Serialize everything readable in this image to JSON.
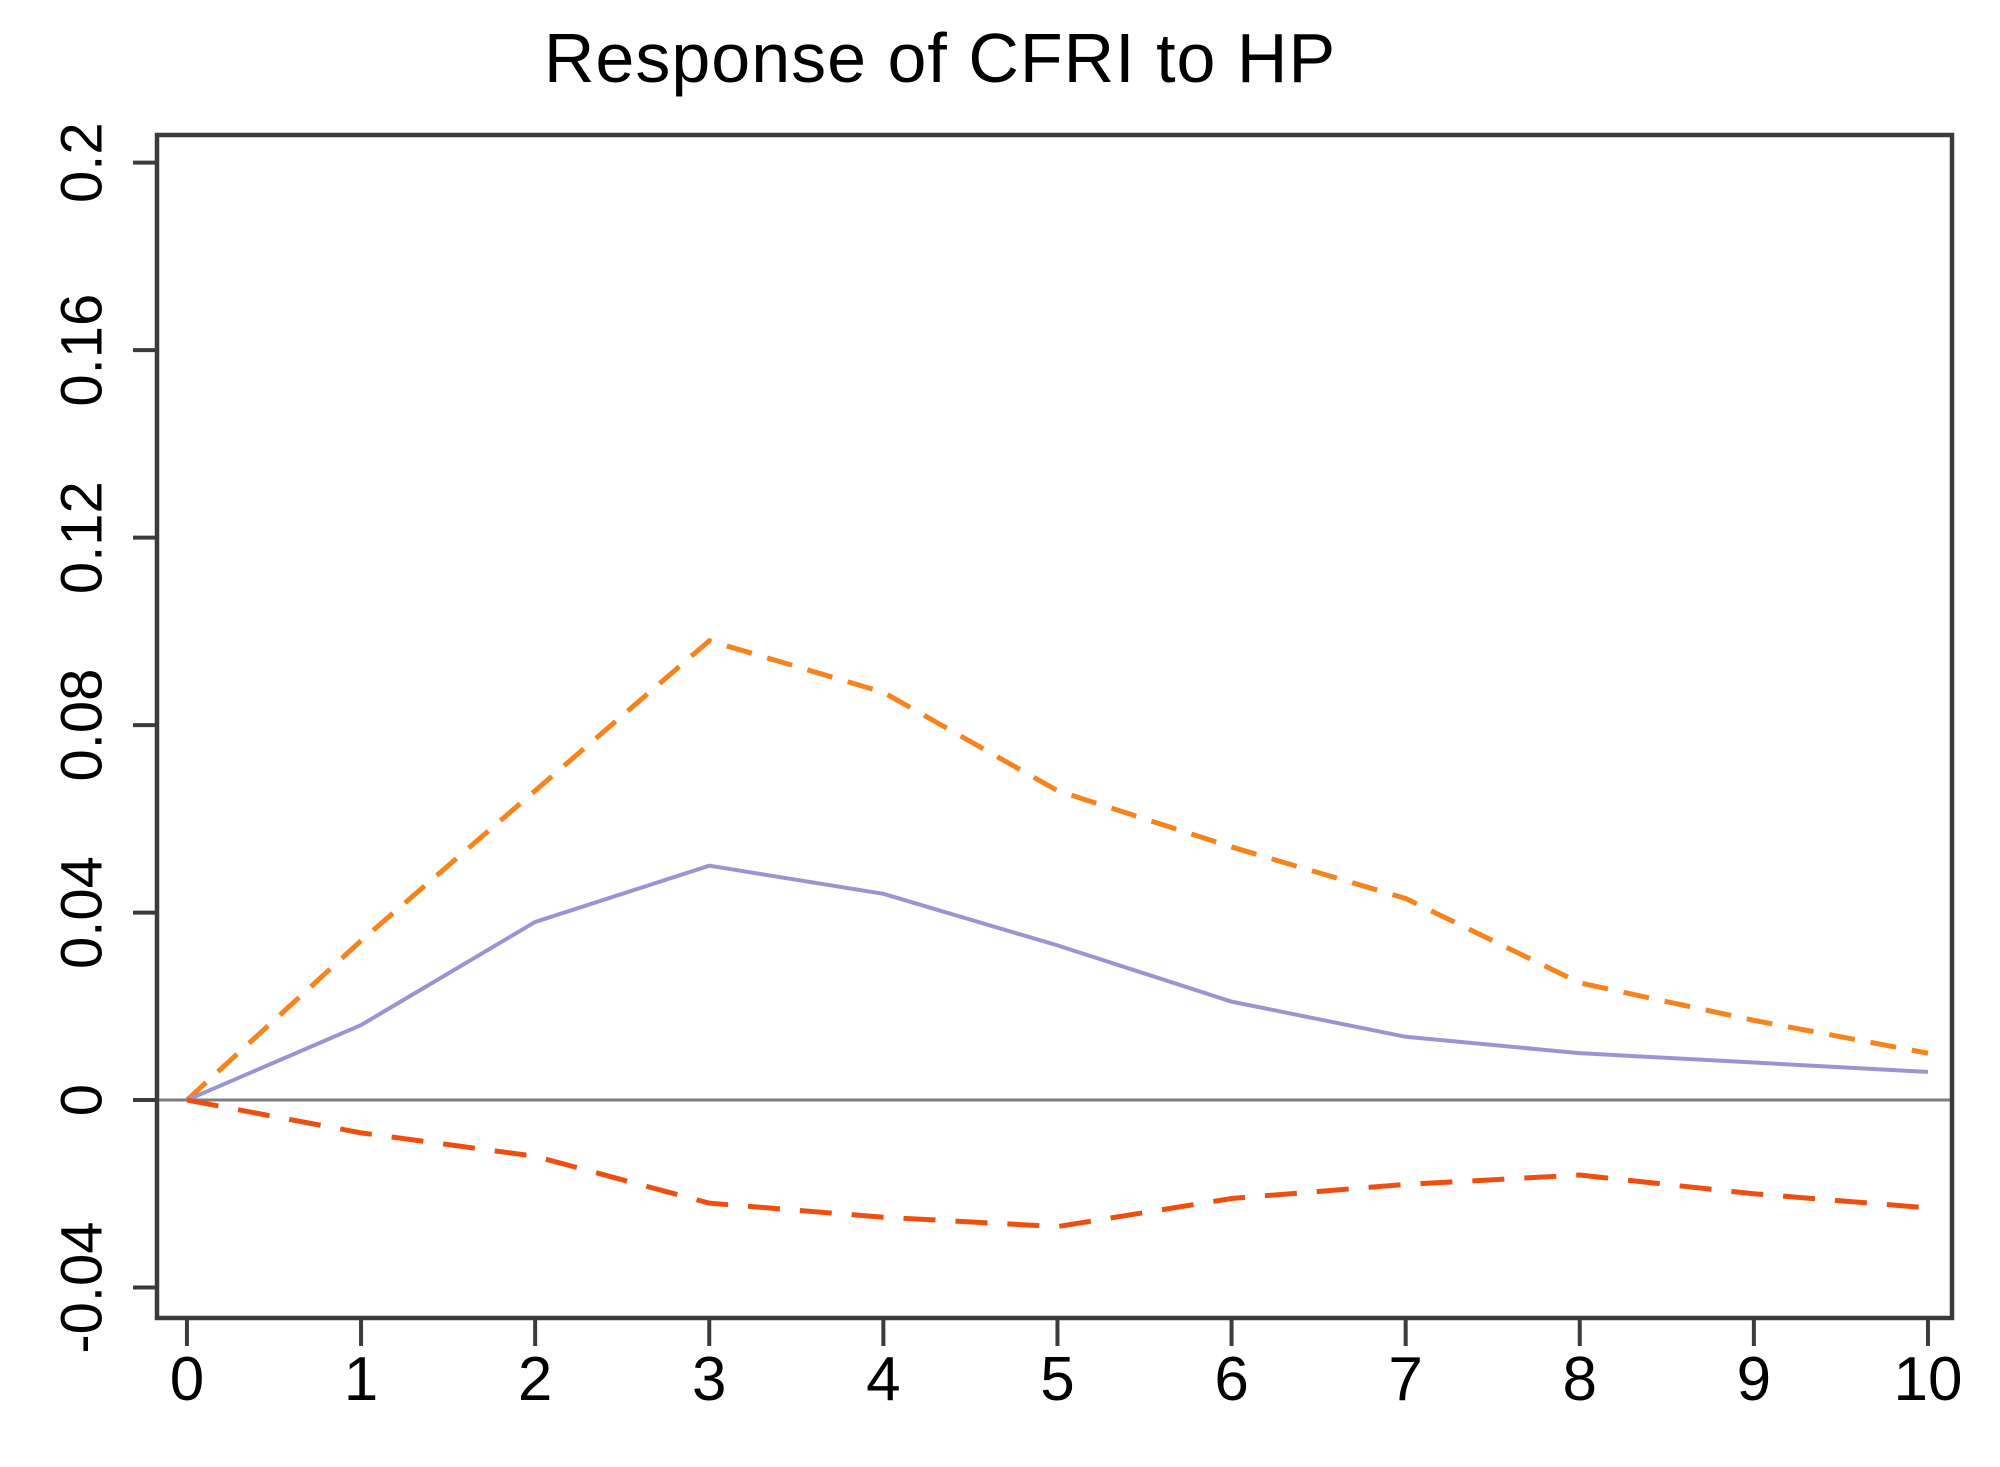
{
  "chart_data": {
    "type": "line",
    "title": "Response of CFRI to HP",
    "xlabel": "",
    "ylabel": "",
    "legend_position": "none",
    "grid": false,
    "zero_line": true,
    "x": [
      0,
      1,
      2,
      3,
      4,
      5,
      6,
      7,
      8,
      9,
      10
    ],
    "series": [
      {
        "name": "upper-confidence-band",
        "style": "dashed",
        "color": "#F6831C",
        "values": [
          0,
          0.034,
          0.066,
          0.098,
          0.087,
          0.066,
          0.054,
          0.043,
          0.025,
          0.017,
          0.01
        ]
      },
      {
        "name": "impulse-response",
        "style": "solid",
        "color": "#9B94D2",
        "values": [
          0,
          0.016,
          0.038,
          0.05,
          0.044,
          0.033,
          0.021,
          0.0135,
          0.01,
          0.008,
          0.006
        ]
      },
      {
        "name": "lower-confidence-band",
        "style": "dashed",
        "color": "#EF4E0F",
        "values": [
          0,
          -0.007,
          -0.012,
          -0.022,
          -0.025,
          -0.027,
          -0.021,
          -0.018,
          -0.016,
          -0.02,
          -0.023
        ]
      }
    ],
    "x_ticks": [
      "0",
      "1",
      "2",
      "3",
      "4",
      "5",
      "6",
      "7",
      "8",
      "9",
      "10"
    ],
    "y_ticks": [
      {
        "label": "-0.04",
        "value": -0.04
      },
      {
        "label": "0",
        "value": 0
      },
      {
        "label": "0.04",
        "value": 0.04
      },
      {
        "label": "0.08",
        "value": 0.08
      },
      {
        "label": "0.12",
        "value": 0.12
      },
      {
        "label": "0.16",
        "value": 0.16
      },
      {
        "label": "0.2",
        "value": 0.2
      }
    ],
    "xlim": [
      -0.172,
      10.138
    ],
    "ylim": [
      -0.0465,
      0.2059
    ],
    "axis_color": "#3B3B3B",
    "zero_line_color": "#7E7E7E",
    "text_color": "#000000",
    "background_color": "#FFFFFF"
  }
}
